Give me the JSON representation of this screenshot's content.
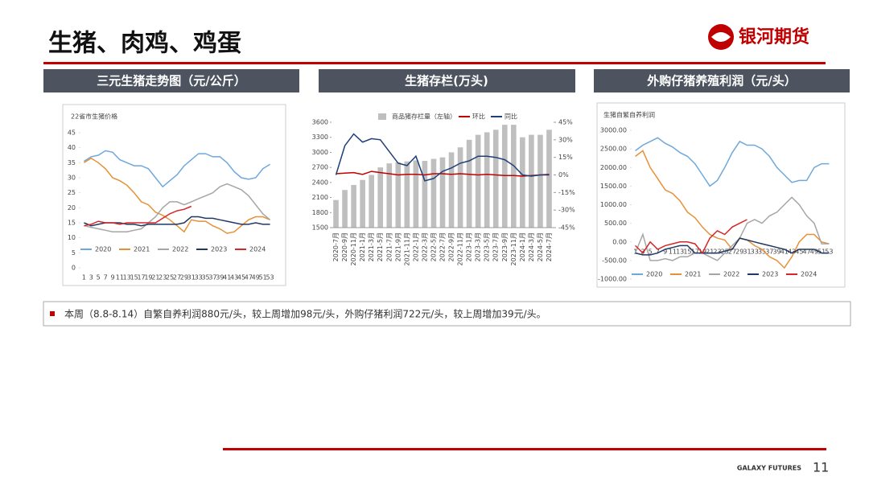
{
  "header": {
    "title": "生猪、肉鸡、鸡蛋",
    "logo": "银河期货"
  },
  "panels": [
    "三元生猪走势图（元/公斤）",
    "生猪存栏(万头)",
    "外购仔猪养殖利润（元/头）"
  ],
  "note": "本周（8.8-8.14）自繁自养利润880元/头，较上周增加98元/头，外购仔猪利润722元/头，较上周增加39元/头。",
  "footer": {
    "brand": "GALAXY FUTURES",
    "page": "11"
  },
  "chart_data": [
    {
      "type": "line",
      "title": "22省市生猪价格",
      "categories": [
        "1",
        "3",
        "5",
        "7",
        "9",
        "11",
        "13",
        "15",
        "17",
        "19",
        "21",
        "23",
        "25",
        "27",
        "29",
        "31",
        "33",
        "35",
        "37",
        "39",
        "41",
        "43",
        "45",
        "47",
        "49",
        "51",
        "53"
      ],
      "ylim": [
        0,
        45
      ],
      "yticks": [
        0,
        5,
        10,
        15,
        20,
        25,
        30,
        35,
        40,
        45
      ],
      "series": [
        {
          "name": "2020",
          "color": "#6fa8dc",
          "values": [
            35.5,
            37,
            37.5,
            39,
            38.5,
            36,
            35,
            34,
            34,
            33,
            30,
            27,
            29,
            31,
            34,
            36,
            38,
            38,
            37,
            37,
            35,
            32,
            30,
            29.5,
            30,
            33,
            34.5
          ]
        },
        {
          "name": "2021",
          "color": "#e69138",
          "values": [
            35,
            36.5,
            35,
            33,
            30,
            29,
            27.5,
            25,
            22,
            21,
            18.5,
            17.5,
            16,
            14,
            12,
            16,
            15.5,
            15.5,
            14,
            13,
            11.5,
            12,
            14,
            16,
            17,
            17,
            16
          ]
        },
        {
          "name": "2022",
          "color": "#a6a6a6",
          "values": [
            14,
            13.5,
            13,
            12.5,
            12,
            12,
            12,
            12.5,
            13,
            15,
            17,
            20,
            22,
            22,
            21,
            22,
            23,
            24,
            25,
            27,
            28,
            27,
            26,
            24,
            21,
            18,
            16
          ]
        },
        {
          "name": "2023",
          "color": "#1f3864",
          "values": [
            15,
            14,
            14.5,
            15,
            15,
            15,
            14.5,
            14.5,
            14,
            14.5,
            14.5,
            14.5,
            14.5,
            14.5,
            15,
            17,
            17,
            16.5,
            16.5,
            16,
            15.5,
            15,
            14.5,
            14.5,
            15,
            14.5,
            14.5
          ]
        },
        {
          "name": "2024",
          "color": "#d62728",
          "values": [
            14,
            14.5,
            15.5,
            15,
            15,
            14.5,
            15,
            15,
            15,
            15,
            15,
            16.5,
            18,
            19,
            19.5,
            20.5,
            null,
            null,
            null,
            null,
            null,
            null,
            null,
            null,
            null,
            null,
            null
          ]
        }
      ]
    },
    {
      "type": "bar",
      "categories": [
        "2020-7月",
        "2020-9月",
        "2020-11月",
        "2021-1月",
        "2021-3月",
        "2021-5月",
        "2021-7月",
        "2021-9月",
        "2021-11月",
        "2022-1月",
        "2022-3月",
        "2022-5月",
        "2022-7月",
        "2022-9月",
        "2022-11月",
        "2023-1月",
        "2023-3月",
        "2023-5月",
        "2023-7月",
        "2023-9月",
        "2023-11月",
        "2024-1月",
        "2024-3月",
        "2024-5月",
        "2024-7月"
      ],
      "ylim": [
        1500,
        3600
      ],
      "yticks": [
        1500,
        1800,
        2100,
        2400,
        2700,
        3000,
        3300,
        3600
      ],
      "y2lim": [
        -45,
        45
      ],
      "y2ticks": [
        {
          "value": 45,
          "label": "45%"
        },
        {
          "value": 30,
          "label": "30%"
        },
        {
          "value": 15,
          "label": "15%"
        },
        {
          "value": 0,
          "label": "0%"
        },
        {
          "value": -15,
          "label": "-15%"
        },
        {
          "value": -30,
          "label": "-30%"
        },
        {
          "value": -45,
          "label": "-45%"
        }
      ],
      "series": [
        {
          "name": "商品猪存栏量（左轴）",
          "type": "bar",
          "color": "#bfbfbf",
          "values": [
            2050,
            2250,
            2350,
            2450,
            2550,
            2700,
            2780,
            2800,
            2820,
            2840,
            2830,
            2870,
            2900,
            3000,
            3100,
            3250,
            3350,
            3400,
            3450,
            3550,
            3550,
            3300,
            3350,
            3350,
            3450
          ]
        },
        {
          "name": "环比",
          "type": "line",
          "axis": "y2",
          "color": "#c00000",
          "values": [
            1,
            1.5,
            2,
            0.5,
            3,
            2,
            1,
            0,
            0.5,
            0.5,
            0,
            1,
            1,
            0.5,
            1,
            0.5,
            0,
            0.5,
            0,
            -0.5,
            -0.5,
            -1,
            -0.5,
            0,
            0.5
          ]
        },
        {
          "name": "同比",
          "type": "line",
          "axis": "y2",
          "color": "#1f3f7a",
          "values": [
            0,
            25,
            35,
            28,
            31,
            30,
            20,
            10,
            8,
            16,
            -5,
            -3,
            3,
            6,
            10,
            12,
            16,
            16,
            15,
            13,
            8,
            0,
            -1,
            0,
            0
          ]
        }
      ]
    },
    {
      "type": "line",
      "title": "生猪自繁自养利润",
      "categories": [
        "1",
        "3",
        "5",
        "7",
        "9",
        "11",
        "13",
        "15",
        "17",
        "19",
        "21",
        "23",
        "25",
        "27",
        "29",
        "31",
        "33",
        "35",
        "37",
        "39",
        "41",
        "43",
        "45",
        "47",
        "49",
        "51",
        "53"
      ],
      "ylim": [
        -1000,
        3000
      ],
      "yticks": [
        {
          "value": -1000,
          "label": "-1000.00"
        },
        {
          "value": -500,
          "label": "-500.00"
        },
        {
          "value": 0,
          "label": "0.00"
        },
        {
          "value": 500,
          "label": "500.00"
        },
        {
          "value": 1000,
          "label": "1000.00"
        },
        {
          "value": 1500,
          "label": "1500.00"
        },
        {
          "value": 2000,
          "label": "2000.00"
        },
        {
          "value": 2500,
          "label": "2500.00"
        },
        {
          "value": 3000,
          "label": "3000.00"
        }
      ],
      "series": [
        {
          "name": "2020",
          "color": "#6fa8dc",
          "values": [
            2450,
            2600,
            2700,
            2800,
            2650,
            2550,
            2400,
            2300,
            2100,
            1800,
            1500,
            1650,
            2000,
            2400,
            2700,
            2600,
            2600,
            2500,
            2300,
            2000,
            1800,
            1600,
            1650,
            1650,
            2000,
            2100,
            2100
          ]
        },
        {
          "name": "2021",
          "color": "#e69138",
          "values": [
            2300,
            2450,
            2000,
            1700,
            1400,
            1300,
            1100,
            800,
            650,
            400,
            200,
            100,
            50,
            -200,
            100,
            50,
            -100,
            -200,
            -400,
            -500,
            -700,
            -400,
            0,
            200,
            200,
            0,
            -50
          ]
        },
        {
          "name": "2022",
          "color": "#a6a6a6",
          "values": [
            -300,
            200,
            -500,
            -500,
            -450,
            -500,
            -400,
            -400,
            -300,
            -300,
            -400,
            -500,
            -300,
            -100,
            100,
            500,
            600,
            500,
            700,
            800,
            1000,
            1200,
            1000,
            700,
            500,
            -50,
            -50
          ]
        },
        {
          "name": "2023",
          "color": "#1f3864",
          "values": [
            -300,
            -350,
            -350,
            -300,
            -200,
            -150,
            -100,
            -100,
            -300,
            -300,
            -300,
            -300,
            -250,
            -200,
            100,
            50,
            0,
            -50,
            -100,
            -150,
            -200,
            -300,
            -200,
            -200,
            -200,
            -300,
            -300
          ]
        },
        {
          "name": "2024",
          "color": "#d62728",
          "values": [
            -100,
            -300,
            0,
            -200,
            -100,
            -50,
            0,
            0,
            -50,
            -300,
            100,
            300,
            200,
            400,
            500,
            600,
            null,
            null,
            null,
            null,
            null,
            null,
            null,
            null,
            null,
            null,
            null
          ]
        }
      ]
    }
  ]
}
